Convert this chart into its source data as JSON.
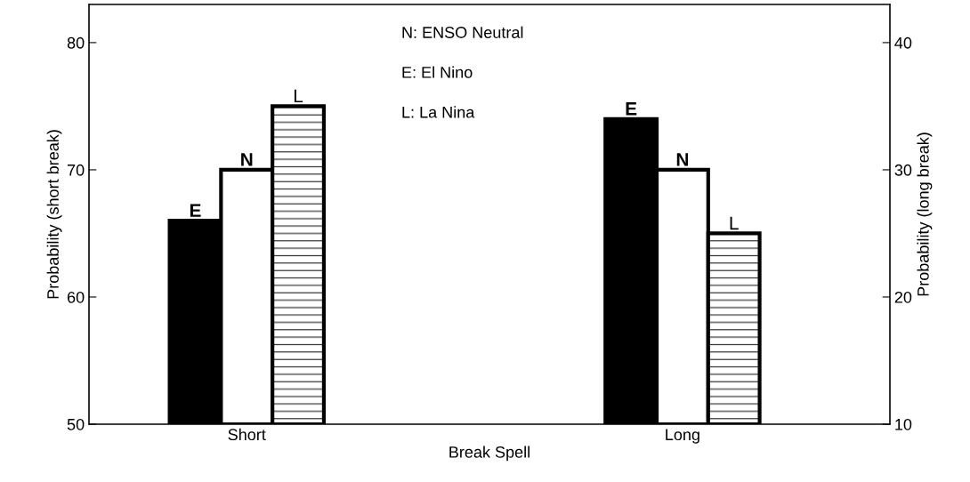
{
  "chart_data": {
    "type": "bar",
    "xlabel": "Break Spell",
    "ylabel": "Probability (short break)",
    "y2label": "Probability (long break)",
    "categories": [
      "Short",
      "Long"
    ],
    "series": [
      {
        "name": "E",
        "color": "#000000",
        "values": [
          66,
          null
        ]
      },
      {
        "name": "N",
        "color": "#ffffff",
        "values": [
          70,
          null
        ]
      },
      {
        "name": "L",
        "color": "#ffffff",
        "values": [
          75,
          null
        ]
      },
      {
        "name": "E",
        "color": "#000000",
        "values": [
          null,
          34
        ],
        "axis": "y2"
      },
      {
        "name": "N",
        "color": "#ffffff",
        "values": [
          null,
          30
        ],
        "axis": "y2"
      },
      {
        "name": "L",
        "color": "#ffffff",
        "values": [
          null,
          25
        ],
        "axis": "y2"
      }
    ],
    "ylim": [
      50,
      83
    ],
    "yticks": [
      50,
      60,
      70,
      80
    ],
    "y2lim": [
      10,
      43
    ],
    "y2ticks": [
      10,
      20,
      30,
      40
    ],
    "annotations": [
      "N: ENSO Neutral",
      "E: El Nino",
      "L: La Nina"
    ],
    "grid": false,
    "legend": false
  }
}
